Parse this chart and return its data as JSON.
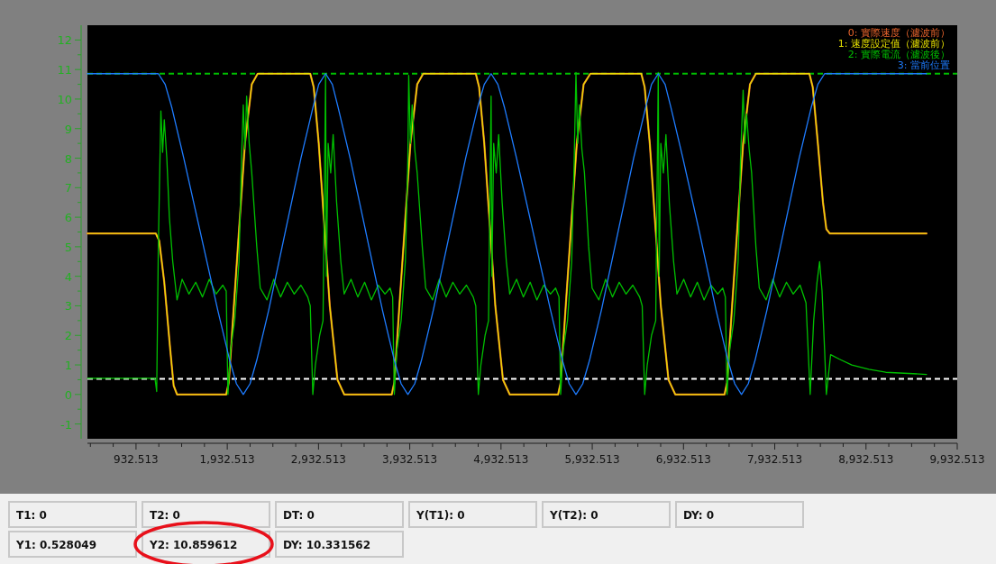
{
  "chart_data": {
    "type": "line",
    "xlim": [
      400,
      9932.513
    ],
    "xticks": [
      {
        "value": 932.513,
        "label": "932.513"
      },
      {
        "value": 1932.513,
        "label": "1,932.513"
      },
      {
        "value": 2932.513,
        "label": "2,932.513"
      },
      {
        "value": 3932.513,
        "label": "3,932.513"
      },
      {
        "value": 4932.513,
        "label": "4,932.513"
      },
      {
        "value": 5932.513,
        "label": "5,932.513"
      },
      {
        "value": 6932.513,
        "label": "6,932.513"
      },
      {
        "value": 7932.513,
        "label": "7,932.513"
      },
      {
        "value": 8932.513,
        "label": "8,932.513"
      },
      {
        "value": 9932.513,
        "label": "9,932.513"
      }
    ],
    "ylim": [
      -1.5,
      12.5
    ],
    "yticks": [
      -1,
      0,
      1,
      2,
      3,
      4,
      5,
      6,
      7,
      8,
      9,
      10,
      11,
      12
    ],
    "legend": "top right",
    "series": [
      {
        "name": "0: 實際速度（濾波前）",
        "color": "#e8642c",
        "x": [
          400,
          1149,
          1187,
          1242,
          1308,
          1345,
          1382,
          1921,
          1949,
          2005,
          2126,
          2201,
          2266,
          2842,
          2880,
          2935,
          3056,
          3140,
          3214,
          3735,
          3763,
          3819,
          3940,
          4014,
          4080,
          4656,
          4693,
          4749,
          4870,
          4954,
          5028,
          5558,
          5586,
          5642,
          5763,
          5838,
          5912,
          6470,
          6507,
          6563,
          6684,
          6768,
          6842,
          7382,
          7410,
          7465,
          7586,
          7661,
          7726,
          8312,
          8349,
          8405,
          8461,
          8498,
          8535,
          9596
        ],
        "values": [
          5.45,
          5.45,
          5.2,
          3.8,
          1.5,
          0.3,
          0,
          0,
          0.4,
          3,
          8.5,
          10.5,
          10.86,
          10.86,
          10.4,
          8.5,
          3,
          0.5,
          0,
          0,
          0.4,
          3,
          8.5,
          10.5,
          10.86,
          10.86,
          10.4,
          8.5,
          3,
          0.5,
          0,
          0,
          0.4,
          3,
          8.5,
          10.5,
          10.86,
          10.86,
          10.4,
          8.5,
          3,
          0.5,
          0,
          0,
          0.4,
          3,
          8.5,
          10.5,
          10.86,
          10.86,
          10.4,
          8.5,
          6.5,
          5.6,
          5.45,
          5.45
        ]
      },
      {
        "name": "1: 速度設定值（濾波前）",
        "color": "#e6e000",
        "x": [
          400,
          1149,
          1187,
          1242,
          1308,
          1345,
          1382,
          1921,
          1949,
          2005,
          2126,
          2201,
          2266,
          2842,
          2880,
          2935,
          3056,
          3140,
          3214,
          3735,
          3763,
          3819,
          3940,
          4014,
          4080,
          4656,
          4693,
          4749,
          4870,
          4954,
          5028,
          5558,
          5586,
          5642,
          5763,
          5838,
          5912,
          6470,
          6507,
          6563,
          6684,
          6768,
          6842,
          7382,
          7410,
          7465,
          7586,
          7661,
          7726,
          8312,
          8349,
          8405,
          8461,
          8498,
          8535,
          9596
        ],
        "values": [
          5.45,
          5.45,
          5.2,
          3.8,
          1.5,
          0.3,
          0,
          0,
          0.4,
          3,
          8.5,
          10.5,
          10.86,
          10.86,
          10.4,
          8.5,
          3,
          0.5,
          0,
          0,
          0.4,
          3,
          8.5,
          10.5,
          10.86,
          10.86,
          10.4,
          8.5,
          3,
          0.5,
          0,
          0,
          0.4,
          3,
          8.5,
          10.5,
          10.86,
          10.86,
          10.4,
          8.5,
          3,
          0.5,
          0,
          0,
          0.4,
          3,
          8.5,
          10.5,
          10.86,
          10.86,
          10.4,
          8.5,
          6.5,
          5.6,
          5.45,
          5.45
        ]
      },
      {
        "name": "2: 實際電流（濾波後）",
        "color": "#00c000",
        "x": [
          400,
          1140,
          1159,
          1177,
          1205,
          1224,
          1242,
          1270,
          1298,
          1335,
          1382,
          1438,
          1512,
          1587,
          1661,
          1735,
          1810,
          1884,
          1921,
          1940,
          1968,
          2014,
          2061,
          2089,
          2108,
          2126,
          2145,
          2173,
          2201,
          2256,
          2294,
          2368,
          2442,
          2517,
          2591,
          2666,
          2740,
          2814,
          2842,
          2870,
          2898,
          2945,
          2982,
          3010,
          3019,
          3038,
          3066,
          3093,
          3131,
          3177,
          3214,
          3289,
          3363,
          3438,
          3512,
          3586,
          3661,
          3717,
          3745,
          3763,
          3791,
          3838,
          3884,
          3912,
          3921,
          3940,
          3959,
          3987,
          4014,
          4070,
          4107,
          4182,
          4256,
          4331,
          4405,
          4480,
          4554,
          4628,
          4656,
          4684,
          4712,
          4758,
          4796,
          4824,
          4833,
          4852,
          4880,
          4907,
          4945,
          4991,
          5028,
          5103,
          5177,
          5252,
          5326,
          5400,
          5475,
          5531,
          5568,
          5586,
          5614,
          5661,
          5707,
          5735,
          5754,
          5773,
          5791,
          5819,
          5847,
          5893,
          5931,
          6005,
          6079,
          6154,
          6228,
          6303,
          6377,
          6452,
          6480,
          6507,
          6535,
          6582,
          6628,
          6656,
          6666,
          6684,
          6712,
          6740,
          6777,
          6824,
          6861,
          6935,
          7010,
          7084,
          7158,
          7233,
          7307,
          7363,
          7391,
          7410,
          7438,
          7484,
          7531,
          7558,
          7586,
          7605,
          7624,
          7652,
          7679,
          7726,
          7763,
          7838,
          7912,
          7986,
          8061,
          8135,
          8210,
          8275,
          8321,
          8359,
          8396,
          8424,
          8451,
          8479,
          8498,
          8526,
          8545,
          8638,
          8777,
          8963,
          9149,
          9596
        ],
        "values": [
          0.55,
          0.55,
          0.1,
          5.0,
          9.6,
          8.2,
          9.3,
          8.0,
          6.0,
          4.5,
          3.2,
          3.9,
          3.4,
          3.8,
          3.3,
          3.9,
          3.4,
          3.7,
          3.5,
          0.0,
          1.5,
          2.5,
          4.5,
          8.0,
          9.8,
          8.3,
          10.1,
          8.5,
          7.5,
          5.0,
          3.6,
          3.2,
          3.9,
          3.3,
          3.8,
          3.4,
          3.7,
          3.3,
          3.0,
          0.0,
          1.0,
          2.0,
          2.5,
          10.8,
          4.0,
          8.5,
          7.5,
          8.8,
          6.5,
          4.5,
          3.4,
          3.9,
          3.3,
          3.8,
          3.2,
          3.7,
          3.4,
          3.6,
          3.3,
          0.0,
          1.5,
          2.5,
          4.5,
          8.0,
          10.8,
          8.5,
          9.8,
          8.3,
          7.5,
          5.0,
          3.6,
          3.2,
          3.9,
          3.3,
          3.8,
          3.4,
          3.7,
          3.3,
          3.0,
          0.0,
          1.0,
          2.0,
          2.5,
          10.1,
          4.0,
          8.5,
          7.5,
          8.8,
          6.5,
          4.5,
          3.4,
          3.9,
          3.3,
          3.8,
          3.2,
          3.7,
          3.4,
          3.6,
          3.3,
          0.0,
          1.5,
          2.5,
          4.5,
          8.0,
          10.9,
          8.5,
          9.8,
          8.3,
          7.5,
          5.0,
          3.6,
          3.2,
          3.9,
          3.3,
          3.8,
          3.4,
          3.7,
          3.3,
          3.0,
          0.0,
          1.0,
          2.0,
          2.5,
          10.9,
          4.0,
          8.5,
          7.5,
          8.8,
          6.5,
          4.5,
          3.4,
          3.9,
          3.3,
          3.8,
          3.2,
          3.7,
          3.4,
          3.6,
          3.3,
          0.0,
          1.5,
          2.5,
          4.5,
          8.0,
          10.3,
          8.5,
          9.5,
          8.3,
          7.5,
          5.0,
          3.6,
          3.2,
          3.9,
          3.3,
          3.8,
          3.4,
          3.7,
          3.1,
          0.0,
          2.5,
          3.8,
          4.5,
          3.5,
          1.5,
          0.0,
          0.8,
          1.35,
          1.2,
          1.0,
          0.85,
          0.75,
          0.68
        ]
      },
      {
        "name": "3: 當前位置",
        "color": "#1e7cff",
        "x": [
          400,
          1177,
          1252,
          1326,
          1456,
          1642,
          1828,
          1959,
          2033,
          2108,
          2182,
          2256,
          2387,
          2563,
          2740,
          2870,
          2935,
          3010,
          3084,
          3149,
          3279,
          3456,
          3633,
          3763,
          3838,
          3912,
          3987,
          4061,
          4191,
          4368,
          4545,
          4675,
          4749,
          4824,
          4898,
          4972,
          5103,
          5289,
          5475,
          5605,
          5680,
          5754,
          5828,
          5903,
          6033,
          6210,
          6386,
          6516,
          6582,
          6656,
          6731,
          6796,
          6926,
          7112,
          7289,
          7419,
          7494,
          7568,
          7642,
          7717,
          7847,
          8024,
          8200,
          8331,
          8405,
          8479,
          9596
        ],
        "values": [
          10.86,
          10.86,
          10.5,
          9.7,
          8.0,
          5.43,
          2.86,
          1.16,
          0.36,
          0,
          0.36,
          1.16,
          2.86,
          5.43,
          8.0,
          9.7,
          10.5,
          10.86,
          10.5,
          9.7,
          8.0,
          5.43,
          2.86,
          1.16,
          0.36,
          0,
          0.36,
          1.16,
          2.86,
          5.43,
          8.0,
          9.7,
          10.5,
          10.86,
          10.5,
          9.7,
          8.0,
          5.43,
          2.86,
          1.16,
          0.36,
          0,
          0.36,
          1.16,
          2.86,
          5.43,
          8.0,
          9.7,
          10.5,
          10.86,
          10.5,
          9.7,
          8.0,
          5.43,
          2.86,
          1.16,
          0.36,
          0,
          0.36,
          1.16,
          2.86,
          5.43,
          8.0,
          9.7,
          10.5,
          10.86,
          10.86
        ]
      }
    ],
    "ref_lines": [
      {
        "axis": "y",
        "value": 10.859612,
        "color": "#00c000",
        "line_style": "dashed"
      },
      {
        "axis": "y",
        "value": 0.528049,
        "color": "#ffffff",
        "line_style": "dashed"
      }
    ],
    "annotations": [
      "T1: 0",
      "T2: 0",
      "DT: 0",
      "Y(T1): 0",
      "Y(T2): 0",
      "DY: 0",
      "Y1: 0.528049",
      "Y2: 10.859612",
      "DY: 10.331562"
    ]
  }
}
